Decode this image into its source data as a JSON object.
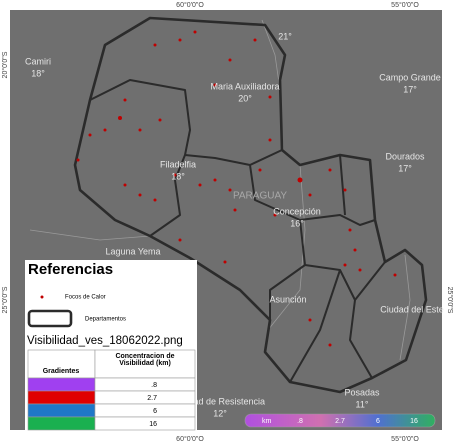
{
  "coordinates": {
    "top": [
      "60°0'0\"O",
      "55°0'0\"O"
    ],
    "bottom": [
      "60°0'0\"O",
      "55°0'0\"O"
    ],
    "left": [
      "20°0'0\"S",
      "25°0'0\"S"
    ],
    "right": [
      "25°0'0\"S"
    ]
  },
  "places": [
    {
      "name": "Camiri",
      "temp": "18°"
    },
    {
      "name": "",
      "temp": "21°"
    },
    {
      "name": "Maria Auxiliadora",
      "temp": "20°"
    },
    {
      "name": "Campo Grande",
      "temp": "17°"
    },
    {
      "name": "Filadelfia",
      "temp": "18°"
    },
    {
      "name": "Dourados",
      "temp": "17°"
    },
    {
      "name": "Concepción",
      "temp": "16°"
    },
    {
      "name": "Ciudad de Resistencia",
      "temp": "12°"
    },
    {
      "name": "Posadas",
      "temp": "11°"
    }
  ],
  "labels": {
    "country": "PARAGUAY",
    "laguna": "Laguna Yema",
    "asuncion": "Asunción",
    "cde": "Ciudad del Este"
  },
  "legend": {
    "title": "Referencias",
    "fires": "Focos de Calor",
    "departments": "Departamentos",
    "raster": "Visibilidad_ves_18062022.png",
    "table": {
      "headers": [
        "Gradientes",
        "Concentracion de Visibilidad (km)"
      ],
      "rows": [
        {
          "color": "#a040f0",
          "value": ".8"
        },
        {
          "color": "#e00000",
          "value": "2.7"
        },
        {
          "color": "#1f78c8",
          "value": "6"
        },
        {
          "color": "#1ab050",
          "value": "16"
        }
      ]
    }
  },
  "colorbar": {
    "unit": "km",
    "labels": [
      ".8",
      "2.7",
      "6",
      "16"
    ]
  }
}
